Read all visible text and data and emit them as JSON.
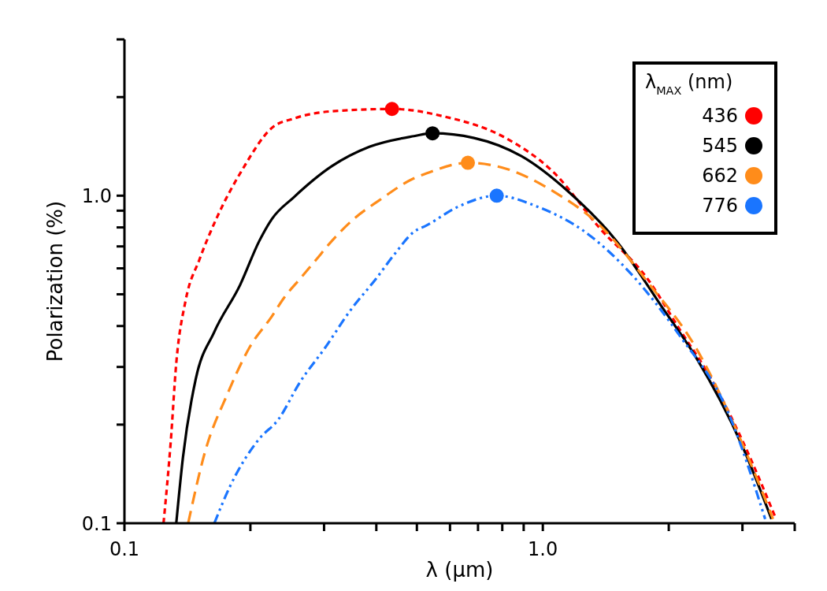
{
  "chart_data": {
    "type": "line",
    "xlabel": "λ (μm)",
    "ylabel": "Polarization (%)",
    "legend_title": "λ$_{MAX}$ (nm)",
    "log": "xy",
    "legend": "top right",
    "grid": false,
    "xlim": [
      0.1,
      4
    ],
    "ylim": [
      0.1,
      3
    ],
    "xticks": [
      {
        "value": 0.1,
        "label": "0.1"
      },
      {
        "value": 0.2,
        "label": null
      },
      {
        "value": 0.3,
        "label": null
      },
      {
        "value": 0.4,
        "label": null
      },
      {
        "value": 0.5,
        "label": null
      },
      {
        "value": 0.6,
        "label": null
      },
      {
        "value": 0.7,
        "label": null
      },
      {
        "value": 0.8,
        "label": null
      },
      {
        "value": 0.9,
        "label": null
      },
      {
        "value": 1,
        "label": "1.0"
      },
      {
        "value": 2,
        "label": null
      },
      {
        "value": 3,
        "label": null
      },
      {
        "value": 4,
        "label": null
      }
    ],
    "yticks": [
      {
        "value": 0.1,
        "label": "0.1"
      },
      {
        "value": 0.2,
        "label": null
      },
      {
        "value": 0.3,
        "label": null
      },
      {
        "value": 0.4,
        "label": null
      },
      {
        "value": 0.5,
        "label": null
      },
      {
        "value": 0.6,
        "label": null
      },
      {
        "value": 0.7,
        "label": null
      },
      {
        "value": 0.8,
        "label": null
      },
      {
        "value": 0.9,
        "label": null
      },
      {
        "value": 1,
        "label": "1.0"
      },
      {
        "value": 2,
        "label": null
      },
      {
        "value": 3,
        "label": null
      }
    ],
    "series": [
      {
        "color": "#ff0000",
        "line_style": "dotted",
        "x": [
          0.124,
          0.129,
          0.133,
          0.14,
          0.151,
          0.167,
          0.192,
          0.225,
          0.254,
          0.313,
          0.439,
          0.575,
          0.815,
          1.06,
          1.37,
          1.78,
          2.12,
          2.53,
          3.01,
          3.61
        ],
        "values": [
          0.1,
          0.177,
          0.308,
          0.478,
          0.637,
          0.867,
          1.21,
          1.61,
          1.72,
          1.81,
          1.84,
          1.75,
          1.5,
          1.18,
          0.794,
          0.557,
          0.392,
          0.275,
          0.177,
          0.103
        ]
      },
      {
        "color": "#000000",
        "line_style": "solid",
        "x": [
          0.133,
          0.138,
          0.148,
          0.164,
          0.189,
          0.21,
          0.225,
          0.254,
          0.313,
          0.385,
          0.492,
          0.545,
          0.685,
          0.889,
          1.15,
          1.5,
          1.95,
          2.32,
          3.01,
          3.52
        ],
        "values": [
          0.1,
          0.159,
          0.275,
          0.384,
          0.534,
          0.727,
          0.848,
          0.989,
          1.23,
          1.41,
          1.52,
          1.55,
          1.5,
          1.32,
          1.03,
          0.727,
          0.447,
          0.322,
          0.17,
          0.103
        ]
      },
      {
        "color": "#ff8c1a",
        "line_style": "dashed",
        "x": [
          0.142,
          0.156,
          0.176,
          0.199,
          0.225,
          0.241,
          0.263,
          0.287,
          0.313,
          0.353,
          0.406,
          0.492,
          0.527,
          0.662,
          0.815,
          1.06,
          1.37,
          1.78,
          2.32,
          3.01,
          3.55
        ],
        "values": [
          0.1,
          0.166,
          0.247,
          0.344,
          0.428,
          0.489,
          0.558,
          0.637,
          0.727,
          0.848,
          0.967,
          1.13,
          1.17,
          1.26,
          1.21,
          1.03,
          0.811,
          0.545,
          0.344,
          0.173,
          0.103
        ]
      },
      {
        "color": "#1a75ff",
        "line_style": "dashdotdot",
        "x": [
          0.164,
          0.179,
          0.21,
          0.233,
          0.263,
          0.302,
          0.347,
          0.399,
          0.443,
          0.492,
          0.527,
          0.628,
          0.776,
          0.97,
          1.26,
          1.64,
          2.12,
          2.76,
          3.4
        ],
        "values": [
          0.1,
          0.13,
          0.181,
          0.207,
          0.27,
          0.344,
          0.447,
          0.557,
          0.665,
          0.776,
          0.811,
          0.926,
          1.0,
          0.926,
          0.776,
          0.57,
          0.375,
          0.221,
          0.103
        ]
      },
      {
        "type": "scatter",
        "name": "436",
        "color": "#ff0000",
        "marker": "circle",
        "x": [
          0.436
        ],
        "values": [
          1.84
        ]
      },
      {
        "type": "scatter",
        "name": "545",
        "color": "#000000",
        "marker": "circle",
        "x": [
          0.545
        ],
        "values": [
          1.55
        ]
      },
      {
        "type": "scatter",
        "name": "662",
        "color": "#ff8c1a",
        "marker": "circle",
        "x": [
          0.662
        ],
        "values": [
          1.26
        ]
      },
      {
        "type": "scatter",
        "name": "776",
        "color": "#1a75ff",
        "marker": "circle",
        "x": [
          0.776
        ],
        "values": [
          1.0
        ]
      }
    ]
  }
}
